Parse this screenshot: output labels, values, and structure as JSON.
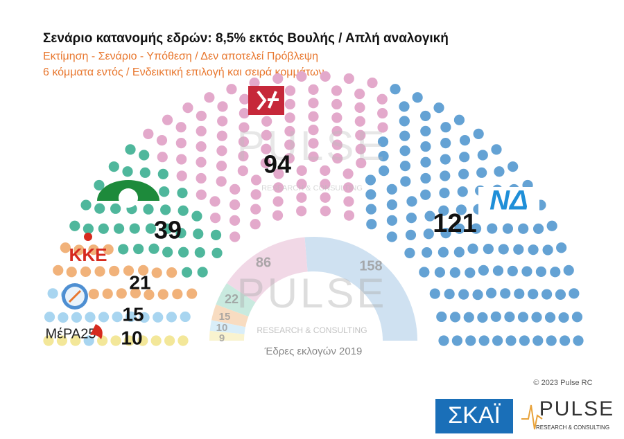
{
  "chart_data": {
    "type": "parliament",
    "title": "Σενάριο κατανομής εδρών: 8,5% εκτός Βουλής / Απλή αναλογική",
    "subtitle": [
      "Εκτίμηση - Σενάριο - Υπόθεση / Δεν αποτελεί Πρόβλεψη",
      "6 κόμματα εντός / Ενδεικτική επιλογή και σειρά κομμάτων"
    ],
    "categories": [
      "ΝΔ",
      null,
      null,
      "ΚΚΕ",
      null,
      "ΜέΡΑ25"
    ],
    "values": [
      121,
      94,
      39,
      21,
      15,
      10
    ],
    "colors": [
      "#64a2d4",
      "#e3a9cb",
      "#4fb79c",
      "#f1b27a",
      "#a8d5f0",
      "#f3e799"
    ],
    "previous": {
      "label": "Έδρες εκλογών 2019",
      "values": [
        158,
        86,
        22,
        15,
        10,
        9
      ],
      "colors": [
        "#cfe1f1",
        "#f1d8e6",
        "#c9eadf",
        "#f8dcc1",
        "#d9eef9",
        "#f9f3cf"
      ]
    }
  },
  "branding": {
    "copyright": "© 2023 Pulse RC",
    "watermark": "PULSE",
    "watermark_sub": "RESEARCH & CONSULTING",
    "broadcaster": "ΣΚΑΪ",
    "pollster": "PULSE",
    "pollster_sub": "RESEARCH & CONSULTING"
  }
}
